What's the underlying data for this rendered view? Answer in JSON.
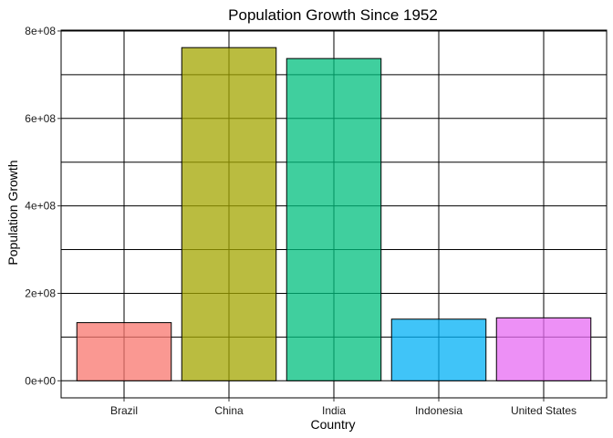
{
  "chart_data": {
    "type": "bar",
    "title": "Population Growth Since 1952",
    "xlabel": "Country",
    "ylabel": "Population Growth",
    "categories": [
      "Brazil",
      "China",
      "India",
      "Indonesia",
      "United States"
    ],
    "values": [
      133000000,
      762000000,
      737000000,
      141000000,
      144000000
    ],
    "colors": [
      "#F8766D",
      "#A3A500",
      "#00BF7D",
      "#00B0F6",
      "#E76BF3"
    ],
    "ylim": [
      -39000000,
      802000000
    ],
    "yticks": [
      0,
      200000000,
      400000000,
      600000000,
      800000000
    ],
    "ytick_labels": [
      "0e+00",
      "2e+08",
      "4e+08",
      "6e+08",
      "8e+08"
    ],
    "grid": true,
    "legend": "none"
  }
}
